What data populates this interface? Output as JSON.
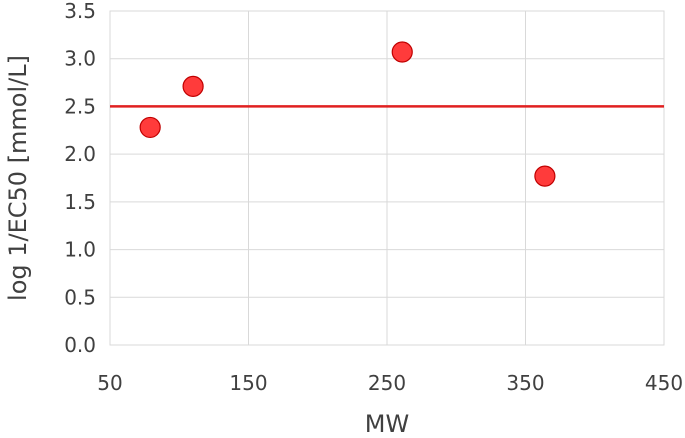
{
  "chart_data": {
    "type": "scatter",
    "xlabel": "MW",
    "ylabel": "log 1/EC50 [mmol/L]",
    "xlim": [
      50,
      450
    ],
    "ylim": [
      0.0,
      3.5
    ],
    "x_ticks": [
      "50",
      "150",
      "250",
      "350",
      "450"
    ],
    "y_ticks": [
      "0.0",
      "0.5",
      "1.0",
      "1.5",
      "2.0",
      "2.5",
      "3.0",
      "3.5"
    ],
    "grid": true,
    "legend": "none",
    "series": [
      {
        "points": [
          {
            "x": 79,
            "y": 2.28
          },
          {
            "x": 110,
            "y": 2.71
          },
          {
            "x": 261,
            "y": 3.07
          },
          {
            "x": 364,
            "y": 1.77
          }
        ],
        "color": "#ff3b3b",
        "edge_color": "#c00000"
      }
    ],
    "reference_line": {
      "y": 2.5,
      "color": "#e02020"
    }
  }
}
